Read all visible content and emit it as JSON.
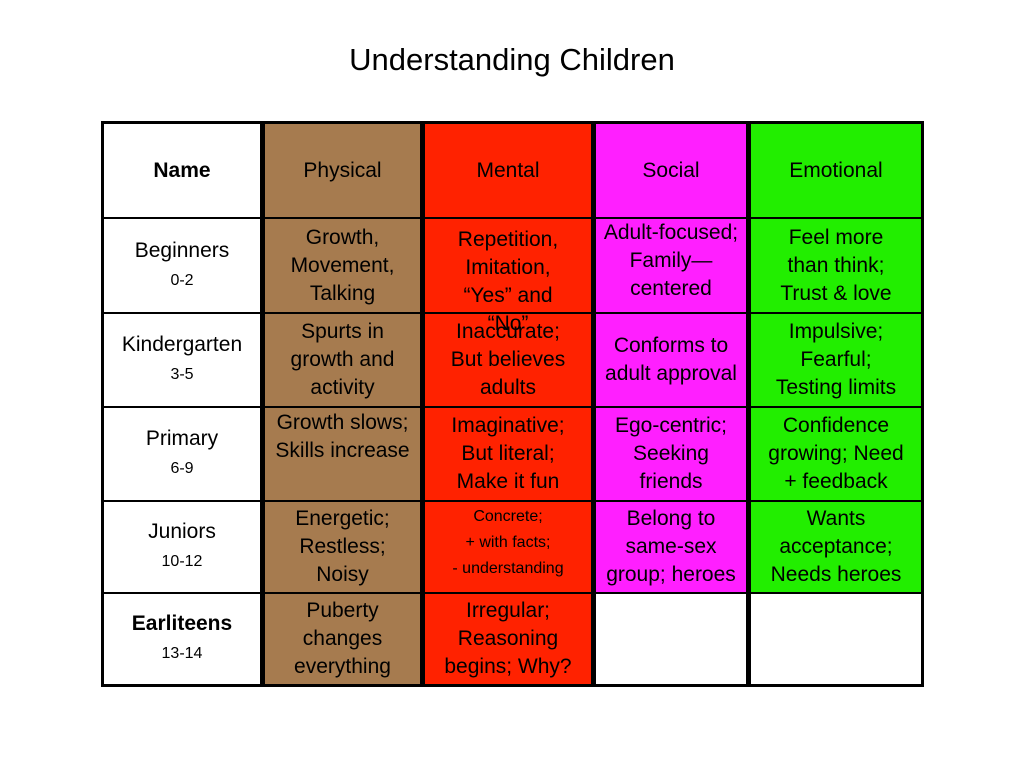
{
  "title": "Understanding Children",
  "headers": {
    "name": "Name",
    "physical": "Physical",
    "mental": "Mental",
    "social": "Social",
    "emotional": "Emotional"
  },
  "colors": {
    "physical": "#a67b4f",
    "mental": "#ff2200",
    "social": "#ff1fff",
    "emotional": "#22ee00"
  },
  "rows": [
    {
      "name": "Beginners",
      "age": "0-2",
      "physical": [
        "Growth,",
        "Movement,",
        "Talking"
      ],
      "mental": [
        "Repetition,",
        "Imitation,",
        "“Yes” and",
        "“No”"
      ],
      "social": [
        "Adult-focused;",
        "Family—",
        "centered"
      ],
      "emotional": [
        "Feel more",
        "than think;",
        "Trust & love"
      ]
    },
    {
      "name": "Kindergarten",
      "age": "3-5",
      "physical": [
        "Spurts in",
        "growth and",
        "activity"
      ],
      "mental": [
        "Inaccurate;",
        "But believes",
        "adults"
      ],
      "social": [
        "Conforms to",
        "adult approval"
      ],
      "emotional": [
        "Impulsive;",
        "Fearful;",
        "Testing limits"
      ]
    },
    {
      "name": "Primary",
      "age": "6-9",
      "physical": [
        "Growth slows;",
        "Skills increase"
      ],
      "mental": [
        "Imaginative;",
        "But literal;",
        "Make it fun"
      ],
      "social": [
        "Ego-centric;",
        "Seeking",
        "friends"
      ],
      "emotional": [
        "Confidence",
        "growing; Need",
        "+ feedback"
      ]
    },
    {
      "name": "Juniors",
      "age": "10-12",
      "physical": [
        "Energetic;",
        "Restless;",
        "Noisy"
      ],
      "mental": [
        "Concrete;",
        "+ with facts;",
        "- understanding"
      ],
      "social": [
        "Belong to",
        "same-sex",
        "group; heroes"
      ],
      "emotional": [
        "Wants",
        "acceptance;",
        "Needs heroes"
      ]
    },
    {
      "name": "Earliteens",
      "age": "13-14",
      "physical": [
        "Puberty",
        "changes",
        "everything"
      ],
      "mental": [
        "Irregular;",
        "Reasoning",
        "begins; Why?"
      ]
    }
  ]
}
